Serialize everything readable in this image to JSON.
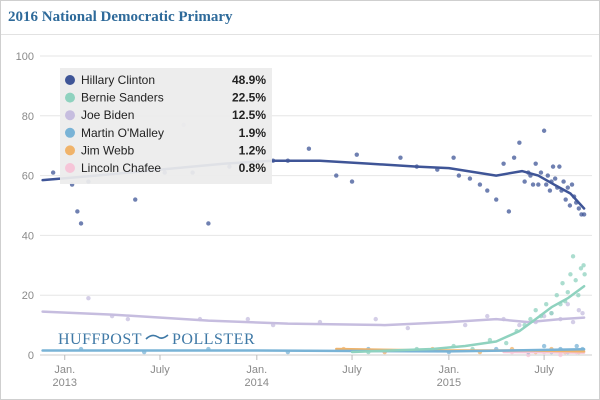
{
  "chart_data": {
    "type": "scatter",
    "title": "2016 National Democratic Primary",
    "ylim": [
      0,
      100
    ],
    "yticks": [
      0,
      20,
      40,
      60,
      80,
      100
    ],
    "xlim": [
      "2012-11-15",
      "2015-09-30"
    ],
    "xticks": [
      {
        "date": "2013-01-01",
        "label": [
          "Jan.",
          "2013"
        ]
      },
      {
        "date": "2013-07-01",
        "label": [
          "July"
        ]
      },
      {
        "date": "2014-01-01",
        "label": [
          "Jan.",
          "2014"
        ]
      },
      {
        "date": "2014-07-01",
        "label": [
          "July"
        ]
      },
      {
        "date": "2015-01-01",
        "label": [
          "Jan.",
          "2015"
        ]
      },
      {
        "date": "2015-07-01",
        "label": [
          "July"
        ]
      }
    ],
    "grid": true,
    "legend_position": "top-left",
    "series": [
      {
        "name": "Hillary Clinton",
        "value_label": "48.9%",
        "color": "#3f5597",
        "trend": [
          [
            "2012-11-20",
            58.5
          ],
          [
            "2013-03-01",
            60
          ],
          [
            "2013-07-01",
            62
          ],
          [
            "2013-11-01",
            64
          ],
          [
            "2014-02-01",
            65
          ],
          [
            "2014-05-01",
            65
          ],
          [
            "2014-08-01",
            64
          ],
          [
            "2014-11-01",
            63
          ],
          [
            "2015-01-01",
            62.5
          ],
          [
            "2015-04-01",
            60
          ],
          [
            "2015-05-20",
            61.5
          ],
          [
            "2015-06-20",
            60
          ],
          [
            "2015-07-20",
            57
          ],
          [
            "2015-08-20",
            54
          ],
          [
            "2015-09-15",
            49
          ]
        ],
        "points": [
          [
            "2012-12-10",
            61
          ],
          [
            "2013-01-15",
            57
          ],
          [
            "2013-01-25",
            48
          ],
          [
            "2013-02-01",
            44
          ],
          [
            "2013-02-15",
            58
          ],
          [
            "2013-05-15",
            52
          ],
          [
            "2013-07-10",
            61
          ],
          [
            "2013-09-01",
            61
          ],
          [
            "2013-10-01",
            44
          ],
          [
            "2013-11-10",
            63
          ],
          [
            "2014-01-05",
            73
          ],
          [
            "2014-02-01",
            65
          ],
          [
            "2014-03-01",
            65
          ],
          [
            "2014-04-10",
            69
          ],
          [
            "2014-06-01",
            60
          ],
          [
            "2014-07-01",
            58
          ],
          [
            "2014-07-10",
            67
          ],
          [
            "2014-10-01",
            66
          ],
          [
            "2014-11-01",
            63
          ],
          [
            "2014-12-10",
            62
          ],
          [
            "2015-01-10",
            66
          ],
          [
            "2015-01-20",
            60
          ],
          [
            "2015-02-10",
            59
          ],
          [
            "2015-03-01",
            57
          ],
          [
            "2015-03-15",
            55
          ],
          [
            "2015-04-01",
            52
          ],
          [
            "2015-04-15",
            64
          ],
          [
            "2015-04-25",
            48
          ],
          [
            "2015-05-05",
            66
          ],
          [
            "2015-05-15",
            71
          ],
          [
            "2015-05-25",
            58
          ],
          [
            "2015-06-01",
            61
          ],
          [
            "2015-06-05",
            60
          ],
          [
            "2015-06-10",
            57
          ],
          [
            "2015-06-15",
            64
          ],
          [
            "2015-06-20",
            57
          ],
          [
            "2015-06-25",
            61
          ],
          [
            "2015-07-01",
            75
          ],
          [
            "2015-07-05",
            57
          ],
          [
            "2015-07-08",
            60
          ],
          [
            "2015-07-12",
            55
          ],
          [
            "2015-07-15",
            58
          ],
          [
            "2015-07-18",
            63
          ],
          [
            "2015-07-22",
            59
          ],
          [
            "2015-07-26",
            56
          ],
          [
            "2015-07-30",
            63
          ],
          [
            "2015-08-03",
            55
          ],
          [
            "2015-08-07",
            58
          ],
          [
            "2015-08-11",
            52
          ],
          [
            "2015-08-15",
            56
          ],
          [
            "2015-08-19",
            50
          ],
          [
            "2015-08-23",
            57
          ],
          [
            "2015-08-27",
            53
          ],
          [
            "2015-08-31",
            51
          ],
          [
            "2015-09-05",
            49
          ],
          [
            "2015-09-10",
            47
          ],
          [
            "2015-09-15",
            47
          ]
        ]
      },
      {
        "name": "Bernie Sanders",
        "value_label": "22.5%",
        "color": "#8fd2bf",
        "trend": [
          [
            "2014-07-01",
            1
          ],
          [
            "2014-12-01",
            2
          ],
          [
            "2015-02-01",
            3
          ],
          [
            "2015-04-01",
            4.5
          ],
          [
            "2015-05-15",
            8
          ],
          [
            "2015-06-15",
            12
          ],
          [
            "2015-07-15",
            16
          ],
          [
            "2015-08-15",
            19
          ],
          [
            "2015-09-15",
            23
          ]
        ],
        "points": [
          [
            "2014-08-01",
            1
          ],
          [
            "2014-11-01",
            2
          ],
          [
            "2015-01-10",
            3
          ],
          [
            "2015-02-15",
            2
          ],
          [
            "2015-03-20",
            5
          ],
          [
            "2015-04-20",
            4
          ],
          [
            "2015-05-10",
            8
          ],
          [
            "2015-05-25",
            10
          ],
          [
            "2015-06-05",
            12
          ],
          [
            "2015-06-15",
            15
          ],
          [
            "2015-06-25",
            13
          ],
          [
            "2015-07-05",
            17
          ],
          [
            "2015-07-15",
            14
          ],
          [
            "2015-07-25",
            20
          ],
          [
            "2015-08-01",
            17
          ],
          [
            "2015-08-05",
            24
          ],
          [
            "2015-08-10",
            18
          ],
          [
            "2015-08-15",
            21
          ],
          [
            "2015-08-20",
            27
          ],
          [
            "2015-08-25",
            33
          ],
          [
            "2015-08-30",
            25
          ],
          [
            "2015-09-04",
            20
          ],
          [
            "2015-09-09",
            29
          ],
          [
            "2015-09-14",
            30
          ],
          [
            "2015-09-16",
            27
          ]
        ]
      },
      {
        "name": "Joe Biden",
        "value_label": "12.5%",
        "color": "#c6bddf",
        "trend": [
          [
            "2012-11-20",
            14.5
          ],
          [
            "2013-04-01",
            13.5
          ],
          [
            "2013-10-01",
            11.5
          ],
          [
            "2014-03-01",
            10.5
          ],
          [
            "2014-09-01",
            10
          ],
          [
            "2015-01-01",
            11
          ],
          [
            "2015-04-01",
            12
          ],
          [
            "2015-06-01",
            11
          ],
          [
            "2015-08-01",
            12
          ],
          [
            "2015-09-15",
            12.5
          ]
        ],
        "points": [
          [
            "2013-02-15",
            19
          ],
          [
            "2013-04-01",
            13
          ],
          [
            "2013-05-01",
            12
          ],
          [
            "2013-08-15",
            77
          ],
          [
            "2013-09-15",
            12
          ],
          [
            "2013-12-15",
            12
          ],
          [
            "2014-02-01",
            10
          ],
          [
            "2014-05-01",
            11
          ],
          [
            "2014-08-15",
            12
          ],
          [
            "2014-10-15",
            9
          ],
          [
            "2015-02-01",
            10
          ],
          [
            "2015-03-15",
            13
          ],
          [
            "2015-04-15",
            12
          ],
          [
            "2015-05-15",
            10
          ],
          [
            "2015-06-15",
            11
          ],
          [
            "2015-07-01",
            13
          ],
          [
            "2015-07-15",
            14
          ],
          [
            "2015-08-01",
            12
          ],
          [
            "2015-08-15",
            17
          ],
          [
            "2015-08-25",
            11
          ],
          [
            "2015-09-05",
            15
          ],
          [
            "2015-09-12",
            14
          ]
        ]
      },
      {
        "name": "Martin O'Malley",
        "value_label": "1.9%",
        "color": "#79b3d6",
        "trend": [
          [
            "2012-11-20",
            1.5
          ],
          [
            "2014-01-01",
            1.5
          ],
          [
            "2015-01-01",
            1.2
          ],
          [
            "2015-09-15",
            1.9
          ]
        ],
        "points": [
          [
            "2013-02-01",
            2
          ],
          [
            "2013-06-01",
            1
          ],
          [
            "2013-10-01",
            2
          ],
          [
            "2014-03-01",
            1
          ],
          [
            "2014-08-01",
            2
          ],
          [
            "2015-01-01",
            1
          ],
          [
            "2015-04-01",
            2
          ],
          [
            "2015-06-01",
            1
          ],
          [
            "2015-07-01",
            3
          ],
          [
            "2015-07-15",
            1
          ],
          [
            "2015-08-01",
            2
          ],
          [
            "2015-08-15",
            1
          ],
          [
            "2015-09-01",
            3
          ],
          [
            "2015-09-12",
            2
          ]
        ]
      },
      {
        "name": "Jim Webb",
        "value_label": "1.2%",
        "color": "#f0b36a",
        "trend": [
          [
            "2014-06-01",
            2
          ],
          [
            "2014-12-01",
            1.5
          ],
          [
            "2015-06-01",
            1.5
          ],
          [
            "2015-09-15",
            1.2
          ]
        ],
        "points": [
          [
            "2014-06-15",
            2
          ],
          [
            "2014-09-01",
            1
          ],
          [
            "2014-12-01",
            2
          ],
          [
            "2015-03-01",
            1
          ],
          [
            "2015-05-01",
            2
          ],
          [
            "2015-06-15",
            1
          ],
          [
            "2015-07-15",
            2
          ],
          [
            "2015-08-10",
            1
          ],
          [
            "2015-09-05",
            1
          ]
        ]
      },
      {
        "name": "Lincoln Chafee",
        "value_label": "0.8%",
        "color": "#f6c5d8",
        "trend": [
          [
            "2015-04-15",
            1
          ],
          [
            "2015-09-15",
            0.8
          ]
        ],
        "points": [
          [
            "2015-05-01",
            1
          ],
          [
            "2015-06-01",
            0
          ],
          [
            "2015-07-01",
            1
          ],
          [
            "2015-08-01",
            0
          ],
          [
            "2015-09-01",
            1
          ]
        ]
      }
    ]
  },
  "watermark": {
    "left": "HUFFPOST",
    "right": "POLLSTER"
  }
}
